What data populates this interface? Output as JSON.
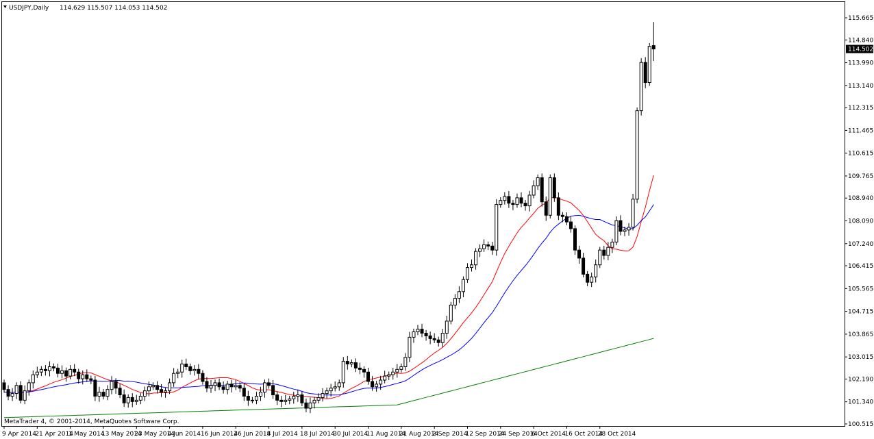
{
  "header": {
    "symbol": "USDJPY,Daily",
    "ohlc": "114.629 115.507 114.053 114.502",
    "dropdown_icon": "triangle-down-icon"
  },
  "copyright": "MetaTrader 4, © 2001-2014, MetaQuotes Software Corp.",
  "price_tag": "114.502",
  "colors": {
    "background": "#ffffff",
    "axis": "#000000",
    "bull_candle": "#ffffff",
    "bear_candle": "#000000",
    "ma_red": "#ff0000",
    "ma_blue": "#0000ff",
    "ma_green": "#008000"
  },
  "chart_data": {
    "type": "candlestick",
    "title": "USDJPY,Daily",
    "ylim": [
      100.515,
      115.665
    ],
    "y_ticks": [
      "115.665",
      "114.840",
      "113.990",
      "113.140",
      "112.315",
      "111.465",
      "110.615",
      "109.765",
      "108.940",
      "108.090",
      "107.240",
      "106.415",
      "105.565",
      "104.715",
      "103.865",
      "103.015",
      "102.190",
      "101.340",
      "100.515"
    ],
    "x_ticks": [
      "9 Apr 2014",
      "21 Apr 2014",
      "1 May 2014",
      "13 May 2014",
      "23 May 2014",
      "4 Jun 2014",
      "16 Jun 2014",
      "26 Jun 2014",
      "8 Jul 2014",
      "18 Jul 2014",
      "30 Jul 2014",
      "11 Aug 2014",
      "21 Aug 2014",
      "2 Sep 2014",
      "12 Sep 2014",
      "24 Sep 2014",
      "6 Oct 2014",
      "16 Oct 2014",
      "28 Oct 2014"
    ],
    "last_price": 114.502,
    "closes": [
      101.8,
      101.55,
      101.65,
      101.95,
      101.4,
      101.75,
      102.05,
      102.35,
      102.45,
      102.55,
      102.5,
      102.65,
      102.6,
      102.4,
      102.5,
      102.3,
      102.55,
      102.45,
      102.2,
      102.35,
      102.2,
      102.15,
      101.55,
      101.7,
      101.55,
      101.8,
      102.1,
      101.85,
      101.6,
      101.3,
      101.5,
      101.35,
      101.4,
      101.55,
      101.75,
      101.9,
      101.95,
      101.8,
      101.7,
      101.75,
      102.05,
      102.4,
      102.45,
      102.75,
      102.65,
      102.5,
      102.55,
      102.4,
      102.1,
      101.85,
      101.95,
      102.05,
      101.9,
      101.8,
      102.0,
      101.9,
      101.95,
      101.85,
      101.55,
      101.4,
      101.4,
      101.55,
      101.7,
      102.05,
      101.95,
      101.6,
      101.4,
      101.35,
      101.4,
      101.45,
      101.55,
      101.6,
      101.3,
      101.1,
      101.3,
      101.4,
      101.5,
      101.65,
      101.75,
      101.85,
      101.9,
      102.05,
      102.85,
      102.75,
      102.8,
      102.6,
      102.55,
      102.45,
      102.1,
      101.9,
      102.0,
      102.15,
      102.3,
      102.35,
      102.45,
      102.55,
      102.65,
      103.0,
      103.75,
      103.95,
      104.05,
      103.9,
      103.8,
      103.7,
      103.65,
      103.55,
      103.9,
      104.35,
      104.95,
      105.2,
      105.45,
      105.9,
      106.35,
      106.45,
      106.95,
      107.05,
      107.2,
      107.15,
      107.0,
      108.7,
      108.85,
      109.0,
      108.75,
      108.7,
      108.95,
      108.75,
      108.65,
      109.05,
      109.4,
      109.7,
      108.8,
      108.3,
      109.7,
      108.95,
      108.3,
      108.25,
      108.05,
      107.8,
      107.0,
      106.7,
      106.1,
      105.8,
      106.0,
      106.45,
      107.0,
      106.8,
      107.1,
      107.3,
      108.1,
      107.7,
      107.75,
      107.85,
      108.9,
      112.2,
      114.0,
      113.25,
      114.6,
      114.502
    ]
  }
}
